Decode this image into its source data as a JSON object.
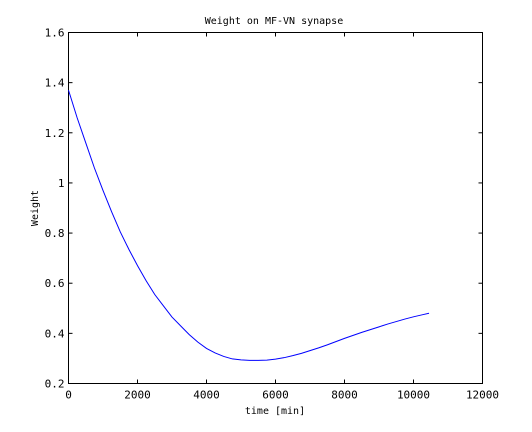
{
  "chart_data": {
    "type": "line",
    "title": "Weight on MF-VN synapse",
    "xlabel": "time [min]",
    "ylabel": "Weight",
    "xlim": [
      0,
      12000
    ],
    "ylim": [
      0.2,
      1.6
    ],
    "xticks": [
      0,
      2000,
      4000,
      6000,
      8000,
      10000,
      12000
    ],
    "yticks": [
      0.2,
      0.4,
      0.6,
      0.8,
      1.0,
      1.2,
      1.4,
      1.6
    ],
    "xtick_labels": [
      "0",
      "2000",
      "4000",
      "6000",
      "8000",
      "10000",
      "12000"
    ],
    "ytick_labels": [
      "0.2",
      "0.4",
      "0.6",
      "0.8",
      "1",
      "1.2",
      "1.4",
      "1.6"
    ],
    "grid": false,
    "series": [
      {
        "color": "#0000ff",
        "x": [
          0,
          250,
          500,
          750,
          1000,
          1250,
          1500,
          1750,
          2000,
          2250,
          2500,
          2750,
          3000,
          3250,
          3500,
          3750,
          4000,
          4250,
          4500,
          4750,
          5000,
          5250,
          5500,
          5750,
          6000,
          6250,
          6500,
          6750,
          7000,
          7250,
          7500,
          7750,
          8000,
          8250,
          8500,
          8750,
          9000,
          9250,
          9500,
          9750,
          10000,
          10250,
          10450
        ],
        "y": [
          1.37,
          1.26,
          1.16,
          1.06,
          0.97,
          0.885,
          0.805,
          0.735,
          0.67,
          0.61,
          0.555,
          0.51,
          0.465,
          0.43,
          0.395,
          0.365,
          0.34,
          0.322,
          0.308,
          0.298,
          0.294,
          0.292,
          0.292,
          0.293,
          0.297,
          0.303,
          0.311,
          0.32,
          0.331,
          0.342,
          0.354,
          0.367,
          0.38,
          0.392,
          0.404,
          0.415,
          0.426,
          0.437,
          0.447,
          0.457,
          0.466,
          0.474,
          0.48
        ]
      }
    ]
  }
}
